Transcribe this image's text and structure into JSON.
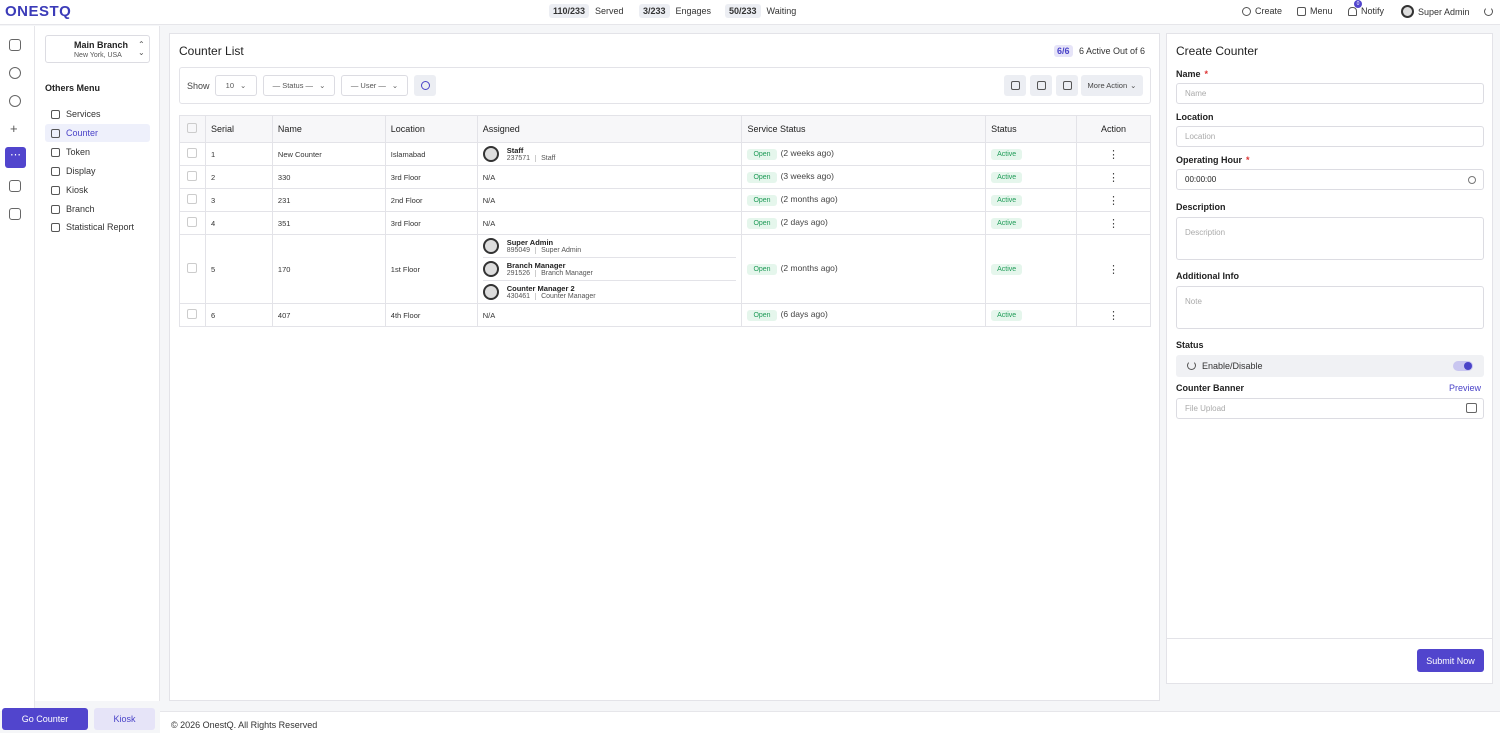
{
  "header": {
    "logo": "ONESTQ",
    "stats": [
      {
        "count": "110/233",
        "label": "Served"
      },
      {
        "count": "3/233",
        "label": "Engages"
      },
      {
        "count": "50/233",
        "label": "Waiting"
      }
    ],
    "actions": [
      "Create",
      "Menu",
      "Notify"
    ],
    "notify_count": "0",
    "user": "Super Admin"
  },
  "sidebar": {
    "branch": {
      "name": "Main Branch",
      "location": "New York, USA"
    },
    "menu_title": "Others Menu",
    "menu": [
      "Services",
      "Counter",
      "Token",
      "Display",
      "Kiosk",
      "Branch",
      "Statistical Report"
    ],
    "buttons": [
      "Go Counter",
      "Kiosk"
    ]
  },
  "footer": "© 2026 OnestQ. All Rights Reserved",
  "counter_list": {
    "title": "Counter List",
    "active_count": "6/6",
    "active_text": "6 Active Out of 6",
    "filters": {
      "show_label": "Show",
      "show_value": "10",
      "status": "— Status —",
      "user": "— User —",
      "more_action": "More Action"
    },
    "table": {
      "headers": [
        "Serial",
        "Name",
        "Location",
        "Assigned",
        "Service Status",
        "Status",
        "Action"
      ],
      "rows": [
        {
          "serial": 1,
          "name": "New Counter",
          "location": "Islamabad",
          "assigned": [
            {
              "name": "Staff",
              "id": "237571",
              "role": "Staff"
            }
          ],
          "service": "Open",
          "since": "(2 weeks ago)",
          "status": "Active"
        },
        {
          "serial": 2,
          "name": "330",
          "location": "3rd Floor",
          "assigned": "N/A",
          "service": "Open",
          "since": "(3 weeks ago)",
          "status": "Active"
        },
        {
          "serial": 3,
          "name": "231",
          "location": "2nd Floor",
          "assigned": "N/A",
          "service": "Open",
          "since": "(2 months ago)",
          "status": "Active"
        },
        {
          "serial": 4,
          "name": "351",
          "location": "3rd Floor",
          "assigned": "N/A",
          "service": "Open",
          "since": "(2 days ago)",
          "status": "Active"
        },
        {
          "serial": 5,
          "name": "170",
          "location": "1st Floor",
          "assigned": [
            {
              "name": "Super Admin",
              "id": "895049",
              "role": "Super Admin"
            },
            {
              "name": "Branch Manager",
              "id": "291526",
              "role": "Branch Manager"
            },
            {
              "name": "Counter Manager 2",
              "id": "430461",
              "role": "Counter Manager"
            }
          ],
          "service": "Open",
          "since": "(2 months ago)",
          "status": "Active"
        },
        {
          "serial": 6,
          "name": "407",
          "location": "4th Floor",
          "assigned": "N/A",
          "service": "Open",
          "since": "(6 days ago)",
          "status": "Active"
        }
      ]
    }
  },
  "form": {
    "title": "Create Counter",
    "required_mark": "*",
    "name": {
      "label": "Name",
      "placeholder": "Name"
    },
    "location": {
      "label": "Location",
      "placeholder": "Location"
    },
    "operating_hour": {
      "label": "Operating Hour",
      "value": "00:00:00"
    },
    "description": {
      "label": "Description",
      "placeholder": "Description"
    },
    "additional_info": {
      "label": "Additional Info",
      "placeholder": "Note"
    },
    "status": {
      "label": "Status",
      "toggle": "Enable/Disable"
    },
    "banner": {
      "label": "Counter Banner",
      "preview": "Preview",
      "placeholder": "File Upload"
    },
    "submit": "Submit Now"
  }
}
